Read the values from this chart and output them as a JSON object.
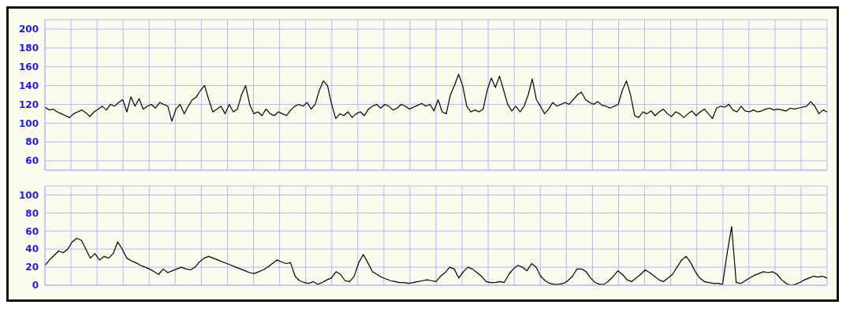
{
  "chart_data": [
    {
      "type": "line",
      "color": "#000000",
      "ylim": [
        50,
        210
      ],
      "yticks": [
        60,
        80,
        100,
        120,
        140,
        160,
        180,
        200
      ],
      "grid": true,
      "tick_labels": "y",
      "categories": [
        null,
        null,
        null,
        null,
        null,
        null,
        null,
        null,
        null,
        null,
        null,
        null,
        null,
        null,
        null,
        null,
        null,
        null,
        null,
        null,
        null,
        null,
        null,
        null,
        null,
        null,
        null,
        null,
        null,
        null,
        null,
        null,
        null,
        null,
        null,
        null,
        null,
        null,
        null,
        null,
        null,
        null,
        null,
        null,
        null,
        null,
        null,
        null,
        null,
        null,
        null,
        null,
        null,
        null,
        null,
        null,
        null,
        null,
        null,
        null,
        null,
        null,
        null,
        null,
        null,
        null,
        null,
        null,
        null,
        null,
        null,
        null,
        null,
        null,
        null,
        null,
        null,
        null,
        null,
        null,
        null,
        null,
        null,
        null,
        null,
        null,
        null,
        null,
        null,
        null,
        null,
        null,
        null,
        null,
        null,
        null,
        null,
        null,
        null,
        null,
        null,
        null,
        null,
        null,
        null,
        null,
        null,
        null,
        null,
        null,
        null,
        null,
        null,
        null,
        null,
        null,
        null,
        null,
        null,
        null,
        null,
        null,
        null,
        null,
        null,
        null,
        null,
        null,
        null,
        null,
        null,
        null,
        null,
        null,
        null,
        null,
        null,
        null,
        null,
        null,
        null,
        null,
        null,
        null,
        null,
        null,
        null,
        null,
        null,
        null,
        null,
        null,
        null,
        null,
        null,
        null,
        null,
        null,
        null,
        null,
        null,
        null,
        null,
        null,
        null,
        null,
        null,
        null,
        null,
        null,
        null,
        null,
        null,
        null,
        null,
        null,
        null,
        null,
        null,
        null,
        null,
        null,
        null,
        null,
        null,
        null,
        null,
        null,
        null,
        null,
        null,
        null
      ],
      "values": [
        117,
        114,
        115,
        112,
        110,
        108,
        106,
        110,
        112,
        114,
        111,
        107,
        112,
        115,
        118,
        114,
        120,
        118,
        122,
        125,
        112,
        128,
        118,
        126,
        115,
        118,
        120,
        116,
        122,
        120,
        118,
        102,
        115,
        120,
        110,
        118,
        125,
        128,
        135,
        140,
        125,
        112,
        115,
        118,
        110,
        120,
        112,
        115,
        130,
        140,
        120,
        110,
        112,
        108,
        115,
        110,
        108,
        112,
        110,
        108,
        114,
        118,
        120,
        118,
        122,
        115,
        120,
        135,
        145,
        140,
        120,
        105,
        110,
        108,
        112,
        106,
        110,
        112,
        108,
        115,
        118,
        120,
        116,
        120,
        118,
        114,
        116,
        120,
        118,
        115,
        117,
        119,
        121,
        118,
        120,
        113,
        125,
        112,
        110,
        130,
        140,
        152,
        140,
        118,
        112,
        114,
        112,
        115,
        135,
        148,
        138,
        150,
        135,
        120,
        113,
        118,
        112,
        118,
        130,
        147,
        125,
        118,
        110,
        115,
        122,
        118,
        120,
        122,
        120,
        125,
        130,
        133,
        125,
        122,
        120,
        123,
        119,
        118,
        116,
        118,
        120,
        135,
        145,
        130,
        108,
        106,
        112,
        110,
        113,
        108,
        112,
        115,
        110,
        107,
        112,
        110,
        106,
        110,
        113,
        108,
        112,
        115,
        110,
        105,
        116,
        118,
        117,
        120,
        114,
        112,
        118,
        113,
        112,
        114,
        112,
        113,
        115,
        116,
        114,
        115,
        114,
        113,
        116,
        115,
        116,
        117,
        118,
        123,
        118,
        110,
        114,
        112
      ]
    },
    {
      "type": "line",
      "color": "#000000",
      "ylim": [
        0,
        110
      ],
      "yticks": [
        0,
        20,
        40,
        60,
        80,
        100
      ],
      "grid": true,
      "tick_labels": "y",
      "categories": [
        null,
        null,
        null,
        null,
        null,
        null,
        null,
        null,
        null,
        null,
        null,
        null,
        null,
        null,
        null,
        null,
        null,
        null,
        null,
        null,
        null,
        null,
        null,
        null,
        null,
        null,
        null,
        null,
        null,
        null,
        null,
        null,
        null,
        null,
        null,
        null,
        null,
        null,
        null,
        null,
        null,
        null,
        null,
        null,
        null,
        null,
        null,
        null,
        null,
        null,
        null,
        null,
        null,
        null,
        null,
        null,
        null,
        null,
        null,
        null,
        null,
        null,
        null,
        null,
        null,
        null,
        null,
        null,
        null,
        null,
        null,
        null,
        null,
        null,
        null,
        null,
        null,
        null,
        null,
        null,
        null,
        null,
        null,
        null,
        null,
        null,
        null,
        null,
        null,
        null,
        null,
        null,
        null,
        null,
        null,
        null,
        null,
        null,
        null,
        null,
        null,
        null,
        null,
        null,
        null,
        null,
        null,
        null,
        null,
        null,
        null,
        null,
        null,
        null,
        null,
        null,
        null,
        null,
        null,
        null,
        null,
        null,
        null,
        null,
        null,
        null,
        null,
        null,
        null,
        null,
        null,
        null,
        null,
        null,
        null,
        null,
        null,
        null,
        null,
        null,
        null,
        null,
        null,
        null,
        null,
        null,
        null,
        null,
        null,
        null,
        null,
        null,
        null,
        null,
        null,
        null,
        null,
        null,
        null,
        null,
        null,
        null,
        null,
        null,
        null,
        null,
        null,
        null,
        null,
        null,
        null,
        null,
        null
      ],
      "values": [
        22,
        28,
        33,
        38,
        36,
        40,
        48,
        52,
        50,
        40,
        30,
        35,
        28,
        32,
        30,
        35,
        48,
        40,
        30,
        27,
        25,
        22,
        20,
        18,
        15,
        12,
        18,
        14,
        16,
        18,
        20,
        18,
        17,
        20,
        26,
        30,
        32,
        30,
        28,
        26,
        24,
        22,
        20,
        18,
        16,
        14,
        13,
        15,
        17,
        20,
        24,
        28,
        26,
        24,
        25,
        10,
        5,
        3,
        2,
        4,
        1,
        3,
        6,
        8,
        15,
        12,
        5,
        4,
        10,
        25,
        34,
        25,
        15,
        12,
        9,
        7,
        5,
        4,
        3,
        3,
        2,
        3,
        4,
        5,
        6,
        5,
        4,
        10,
        14,
        20,
        18,
        8,
        15,
        20,
        18,
        14,
        10,
        4,
        3,
        3,
        4,
        3,
        12,
        18,
        22,
        20,
        16,
        24,
        20,
        10,
        5,
        2,
        1,
        1,
        2,
        5,
        10,
        18,
        18,
        15,
        8,
        3,
        1,
        1,
        5,
        10,
        16,
        12,
        6,
        4,
        8,
        12,
        17,
        14,
        10,
        6,
        4,
        8,
        12,
        20,
        28,
        32,
        25,
        15,
        8,
        4,
        3,
        2,
        2,
        1,
        35,
        65,
        3,
        2,
        5,
        8,
        11,
        13,
        15,
        14,
        15,
        12,
        6,
        2,
        0,
        1,
        3,
        6,
        8,
        10,
        9,
        10,
        8
      ]
    }
  ]
}
